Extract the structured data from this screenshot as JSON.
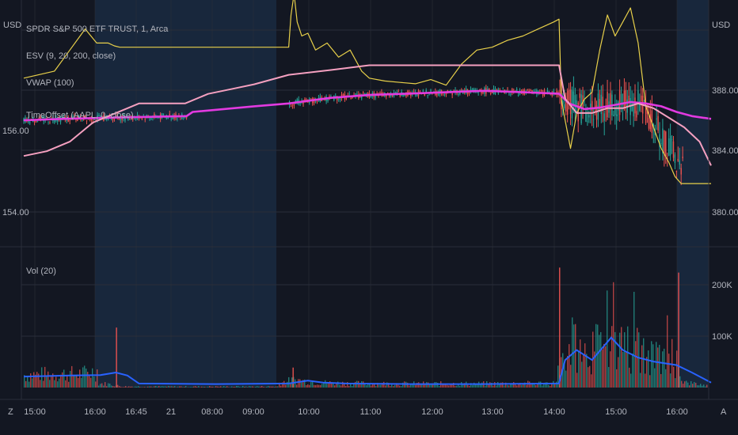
{
  "header": {
    "left_unit": "USD",
    "right_unit": "USD",
    "symbol_title": "SPDR S&P 500 ETF TRUST, 1, Arca",
    "indicators": [
      "ESV (9, 20, 200, close)",
      "VWAP (100)",
      "TimeOffset (AAPL, 0, close)"
    ],
    "volume_label": "Vol (20)"
  },
  "bottom_bar": {
    "left_button": "Z",
    "right_button": "A"
  },
  "colors": {
    "background": "#131722",
    "session_shade": "#1b2d45",
    "grid": "#2a2e39",
    "price_line": "#e8d04a",
    "vwap": "#e23ae0",
    "aapl_offset": "#f5a0c0",
    "volume_ma": "#2962ff",
    "candle_up": "#26a69a",
    "candle_down": "#ef5350"
  },
  "chart_data": [
    {
      "type": "line",
      "title": "SPDR S&P 500 ETF TRUST, 1, Arca",
      "x_ticks": [
        "15:00",
        "16:00",
        "16:45",
        "21",
        "08:00",
        "09:00",
        "10:00",
        "11:00",
        "12:00",
        "13:00",
        "14:00",
        "15:00",
        "16:00"
      ],
      "left_axis": {
        "unit": "USD",
        "ticks": [
          "156.00",
          "154.00"
        ],
        "ylim": [
          153.0,
          158.0
        ]
      },
      "right_axis": {
        "unit": "USD",
        "ticks": [
          "388.00",
          "384.00",
          "380.00"
        ],
        "ylim": [
          375.0,
          392.0
        ]
      },
      "series": [
        {
          "name": "ESV (9, 20, 200, close)",
          "axis": "right",
          "color": "#e8d04a",
          "values": [
            [
              0,
              387.0
            ],
            [
              40,
              387.5
            ],
            [
              60,
              389.0
            ],
            [
              80,
              390.5
            ],
            [
              95,
              389.5
            ],
            [
              110,
              389.5
            ],
            [
              118,
              389.3
            ],
            [
              125,
              389.2
            ],
            [
              250,
              389.2
            ],
            [
              345,
              389.2
            ],
            [
              348,
              391.5
            ],
            [
              352,
              393.0
            ],
            [
              356,
              391.0
            ],
            [
              362,
              390.0
            ],
            [
              370,
              390.2
            ],
            [
              380,
              389.0
            ],
            [
              395,
              389.5
            ],
            [
              410,
              388.5
            ],
            [
              425,
              389.0
            ],
            [
              440,
              387.5
            ],
            [
              450,
              387.0
            ],
            [
              470,
              386.8
            ],
            [
              490,
              386.7
            ],
            [
              510,
              386.6
            ],
            [
              530,
              386.9
            ],
            [
              550,
              386.5
            ],
            [
              570,
              388.0
            ],
            [
              590,
              389.0
            ],
            [
              610,
              389.2
            ],
            [
              630,
              389.7
            ],
            [
              650,
              390.0
            ],
            [
              670,
              390.5
            ],
            [
              690,
              391.0
            ],
            [
              697,
              391.2
            ],
            [
              700,
              385.5
            ],
            [
              705,
              384.0
            ],
            [
              712,
              382.0
            ],
            [
              720,
              384.5
            ],
            [
              730,
              385.5
            ],
            [
              740,
              386.0
            ],
            [
              750,
              389.0
            ],
            [
              760,
              391.5
            ],
            [
              770,
              390.0
            ],
            [
              780,
              391.0
            ],
            [
              790,
              392.0
            ],
            [
              800,
              389.5
            ],
            [
              810,
              385.0
            ],
            [
              820,
              383.5
            ],
            [
              830,
              382.0
            ],
            [
              840,
              381.0
            ],
            [
              848,
              380.0
            ],
            [
              856,
              379.5
            ],
            [
              895,
              379.5
            ]
          ]
        },
        {
          "name": "VWAP (100)",
          "axis": "right",
          "color": "#e23ae0",
          "values": [
            [
              0,
              384.0
            ],
            [
              50,
              384.1
            ],
            [
              120,
              384.2
            ],
            [
              212,
              384.3
            ],
            [
              220,
              384.6
            ],
            [
              300,
              385.0
            ],
            [
              345,
              385.2
            ],
            [
              400,
              385.6
            ],
            [
              450,
              385.8
            ],
            [
              500,
              385.9
            ],
            [
              550,
              386.0
            ],
            [
              600,
              386.1
            ],
            [
              650,
              386.0
            ],
            [
              697,
              385.9
            ],
            [
              710,
              385.2
            ],
            [
              730,
              384.8
            ],
            [
              750,
              384.9
            ],
            [
              770,
              385.1
            ],
            [
              790,
              385.3
            ],
            [
              810,
              385.2
            ],
            [
              830,
              385.0
            ],
            [
              850,
              384.6
            ],
            [
              870,
              384.3
            ],
            [
              895,
              384.1
            ]
          ]
        },
        {
          "name": "TimeOffset (AAPL, 0, close)",
          "axis": "left",
          "color": "#f5a0c0",
          "values": [
            [
              0,
              154.9
            ],
            [
              30,
              155.0
            ],
            [
              60,
              155.2
            ],
            [
              90,
              155.6
            ],
            [
              120,
              155.8
            ],
            [
              150,
              156.0
            ],
            [
              180,
              156.0
            ],
            [
              210,
              156.0
            ],
            [
              240,
              156.2
            ],
            [
              270,
              156.3
            ],
            [
              300,
              156.4
            ],
            [
              345,
              156.6
            ],
            [
              400,
              156.7
            ],
            [
              450,
              156.8
            ],
            [
              500,
              156.8
            ],
            [
              550,
              156.8
            ],
            [
              600,
              156.8
            ],
            [
              650,
              156.8
            ],
            [
              697,
              156.8
            ],
            [
              705,
              156.1
            ],
            [
              720,
              155.8
            ],
            [
              740,
              155.8
            ],
            [
              760,
              155.9
            ],
            [
              780,
              155.9
            ],
            [
              800,
              156.0
            ],
            [
              820,
              155.9
            ],
            [
              840,
              155.7
            ],
            [
              860,
              155.5
            ],
            [
              880,
              155.2
            ],
            [
              895,
              154.7
            ]
          ]
        }
      ]
    },
    {
      "type": "bar",
      "title": "Vol (20)",
      "y_axis": {
        "ticks": [
          "200K",
          "100K"
        ],
        "ylim": [
          0,
          250000
        ]
      },
      "volume_ma": [
        [
          0,
          22000
        ],
        [
          60,
          24000
        ],
        [
          100,
          25000
        ],
        [
          120,
          30000
        ],
        [
          135,
          24000
        ],
        [
          150,
          8000
        ],
        [
          250,
          7000
        ],
        [
          345,
          8000
        ],
        [
          370,
          14000
        ],
        [
          390,
          10000
        ],
        [
          420,
          8000
        ],
        [
          500,
          7000
        ],
        [
          600,
          7000
        ],
        [
          697,
          8000
        ],
        [
          705,
          55000
        ],
        [
          720,
          75000
        ],
        [
          740,
          55000
        ],
        [
          765,
          100000
        ],
        [
          780,
          75000
        ],
        [
          800,
          60000
        ],
        [
          820,
          52000
        ],
        [
          850,
          45000
        ],
        [
          870,
          30000
        ],
        [
          895,
          10000
        ]
      ]
    }
  ]
}
